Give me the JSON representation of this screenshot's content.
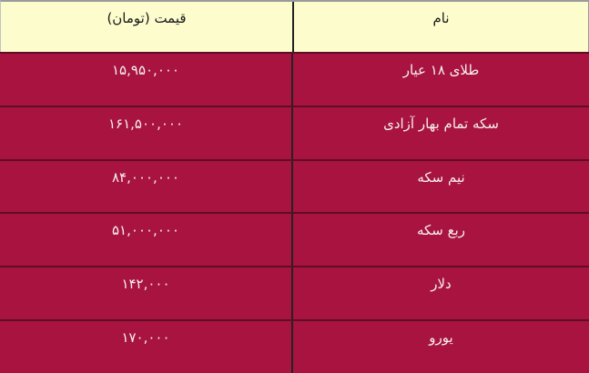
{
  "table": {
    "header": {
      "price_label": "قیمت (تومان)",
      "name_label": "نام"
    },
    "rows": [
      {
        "name": "طلای ۱۸ عیار",
        "price": "۱۵,۹۵۰,۰۰۰"
      },
      {
        "name": "سکه تمام بهار آزادی",
        "price": "۱۶۱,۵۰۰,۰۰۰"
      },
      {
        "name": "نیم سکه",
        "price": "۸۴,۰۰۰,۰۰۰"
      },
      {
        "name": "ربع سکه",
        "price": "۵۱,۰۰۰,۰۰۰"
      },
      {
        "name": "دلار",
        "price": "۱۴۲,۰۰۰"
      },
      {
        "name": "یورو",
        "price": "۱۷۰,۰۰۰"
      }
    ]
  },
  "colors": {
    "header_bg": "#fcfccd",
    "row_bg": "#a8143f",
    "separator": "#5e0d26",
    "divider": "#232323",
    "header_text": "#1a1a1a",
    "row_text": "#f6eff2",
    "outer_border": "#9a9a9a"
  }
}
